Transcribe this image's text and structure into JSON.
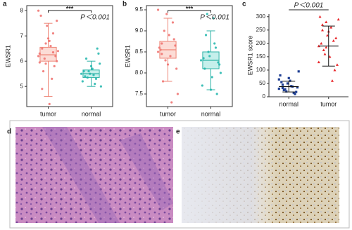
{
  "chart_data": [
    {
      "type": "box",
      "label": "a",
      "ylabel": "EWSR1",
      "annotation": "***",
      "pvalue": "P＜0.001",
      "categories": [
        "tumor",
        "normal"
      ],
      "colors": [
        "#ef6f6c",
        "#1fb5ac"
      ],
      "boxes": [
        {
          "min": 4.6,
          "q1": 6.0,
          "median": 6.25,
          "q3": 6.55,
          "max": 7.5
        },
        {
          "min": 5.0,
          "q1": 5.35,
          "median": 5.5,
          "q3": 5.65,
          "max": 6.0
        }
      ],
      "points": [
        [
          6.2,
          6.5,
          5.9,
          6.8,
          7.1,
          6.0,
          6.3,
          5.6,
          7.4,
          6.6,
          5.8,
          6.4,
          7.8,
          6.1,
          6.9,
          5.3,
          6.2,
          8.0,
          4.9,
          6.7,
          4.3,
          6.35,
          7.6,
          5.95
        ],
        [
          5.5,
          5.4,
          5.6,
          5.7,
          5.3,
          5.9,
          5.2,
          6.1,
          5.5,
          5.45,
          6.5,
          5.0,
          5.6,
          5.35,
          5.8,
          5.1,
          6.3
        ]
      ],
      "ylim": [
        4.2,
        8.2
      ],
      "yticks": [
        5,
        6,
        7,
        8
      ]
    },
    {
      "type": "box",
      "label": "b",
      "ylabel": "EWSR1",
      "annotation": "***",
      "pvalue": "P＜0.001",
      "categories": [
        "tumor",
        "normal"
      ],
      "colors": [
        "#ef6f6c",
        "#1fb5ac"
      ],
      "boxes": [
        {
          "min": 7.8,
          "q1": 8.35,
          "median": 8.55,
          "q3": 8.75,
          "max": 9.3
        },
        {
          "min": 7.6,
          "q1": 8.1,
          "median": 8.3,
          "q3": 8.5,
          "max": 9.0
        }
      ],
      "points": [
        [
          8.5,
          8.7,
          8.3,
          8.9,
          9.2,
          8.1,
          8.6,
          7.8,
          9.4,
          8.4,
          8.8,
          7.5,
          8.55,
          9.0,
          8.2,
          7.3,
          8.65,
          9.5,
          8.45
        ],
        [
          8.3,
          8.1,
          8.5,
          7.9,
          8.6,
          8.2,
          7.7,
          8.9,
          8.4,
          9.3,
          7.5,
          8.0,
          8.35,
          9.4,
          7.6,
          8.7,
          8.25
        ]
      ],
      "ylim": [
        7.2,
        9.6
      ],
      "yticks": [
        {
          "value": 7.5,
          "label": "7.5"
        },
        {
          "value": 8,
          "label": "8.0"
        },
        {
          "value": 8.5,
          "label": "8.5"
        },
        {
          "value": 9,
          "label": "9.0"
        },
        {
          "value": 9.5,
          "label": "9.5"
        }
      ]
    },
    {
      "type": "dot",
      "label": "c",
      "ylabel": "EWSR1 score",
      "pvalue": "P＜0.001",
      "categories": [
        "normal",
        "tumor"
      ],
      "colors": [
        "#1f3f93",
        "#e8262a"
      ],
      "means": [
        38,
        190
      ],
      "sds": [
        20,
        75
      ],
      "points": [
        [
          30,
          45,
          20,
          60,
          15,
          35,
          80,
          25,
          50,
          40,
          10,
          95,
          55,
          28,
          70,
          38,
          18,
          65,
          33
        ],
        [
          190,
          250,
          280,
          150,
          210,
          120,
          300,
          175,
          230,
          260,
          100,
          290,
          200,
          160,
          245,
          60,
          220,
          130,
          270,
          185
        ]
      ],
      "ylim": [
        0,
        310
      ],
      "yticks": [
        0,
        50,
        100,
        150,
        200,
        250,
        300
      ]
    }
  ],
  "images": [
    {
      "label": "d"
    },
    {
      "label": "e"
    }
  ]
}
